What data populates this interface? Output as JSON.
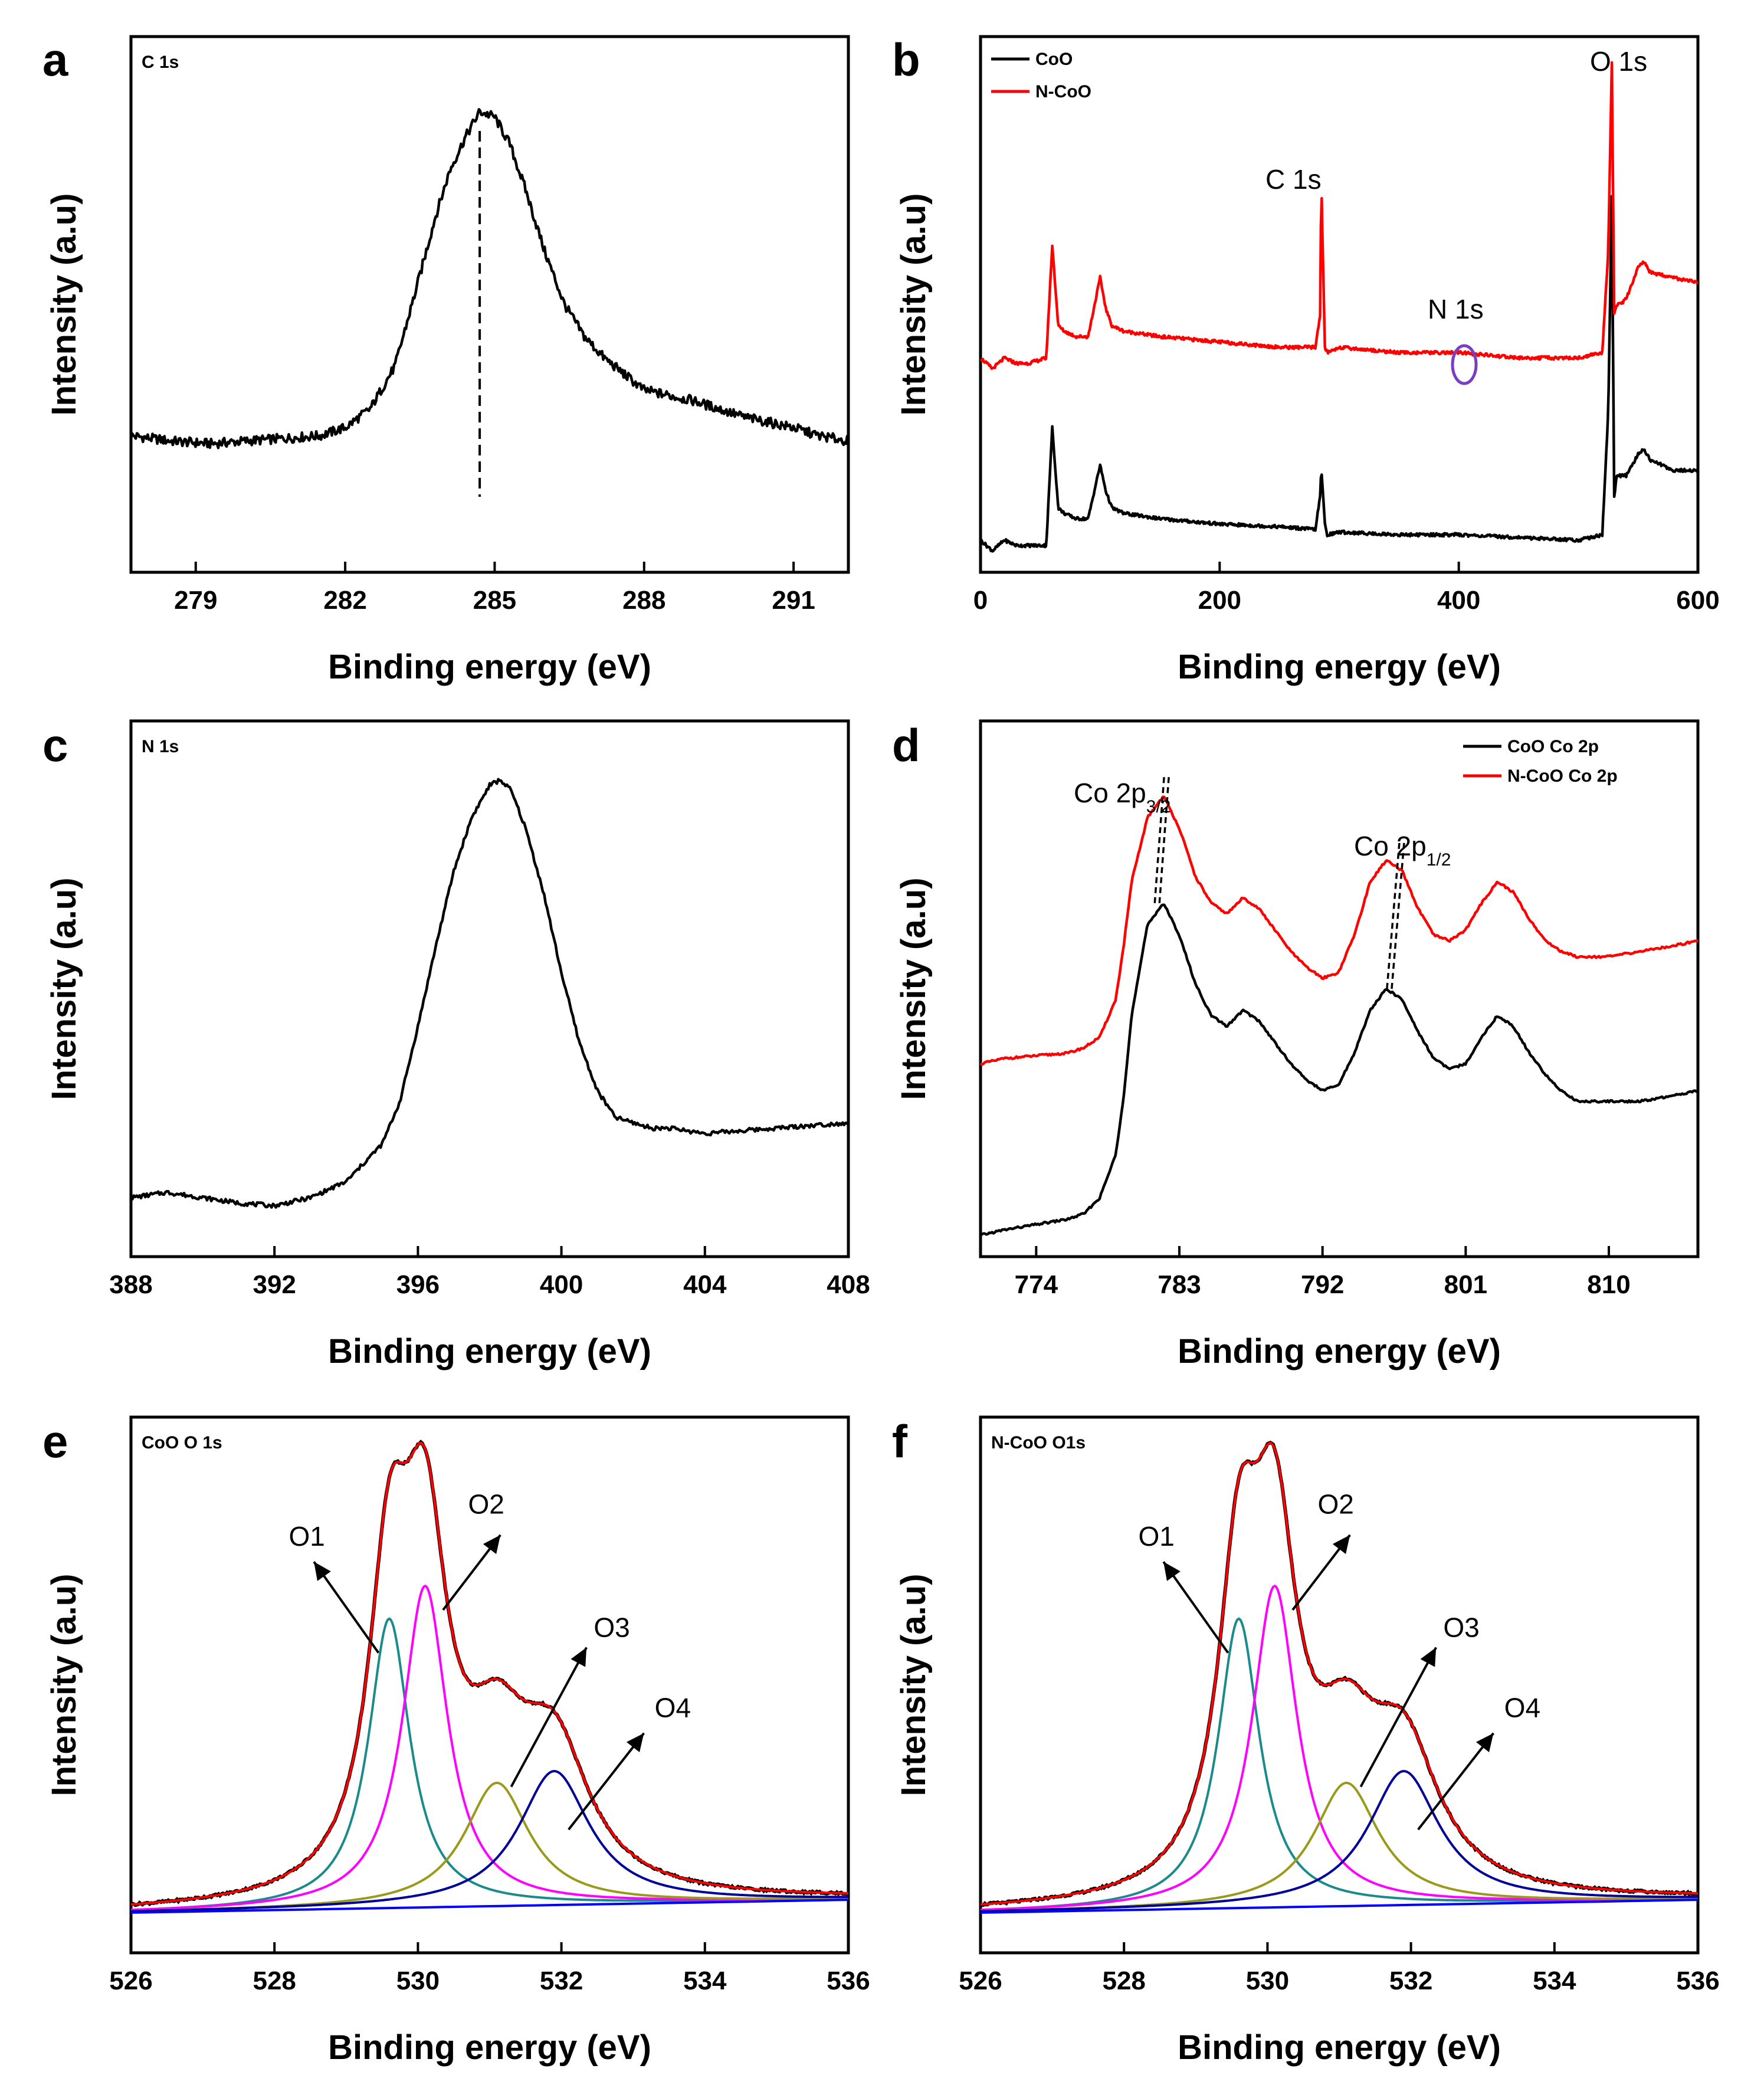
{
  "chart_data": [
    {
      "id": "a",
      "type": "line",
      "panel_label": "a",
      "title": "C 1s",
      "xlabel": "Binding energy (eV)",
      "ylabel": "Intensity (a.u)",
      "xlim": [
        277.7,
        292.1
      ],
      "ylim": [
        0,
        1.0
      ],
      "xticks": [
        279,
        282,
        285,
        288,
        291
      ],
      "series": [
        {
          "name": "C 1s",
          "color": "#000000",
          "x": [
            277.7,
            278.5,
            279.3,
            280.0,
            280.8,
            281.5,
            282.0,
            282.5,
            283.0,
            283.4,
            283.8,
            284.1,
            284.4,
            284.7,
            285.0,
            285.3,
            285.6,
            286.0,
            286.4,
            286.8,
            287.2,
            287.6,
            288.0,
            288.5,
            289.0,
            289.5,
            290.0,
            290.5,
            291.0,
            291.5,
            292.1
          ],
          "y": [
            0.255,
            0.245,
            0.24,
            0.245,
            0.25,
            0.255,
            0.27,
            0.305,
            0.385,
            0.52,
            0.66,
            0.75,
            0.81,
            0.86,
            0.85,
            0.8,
            0.72,
            0.6,
            0.5,
            0.44,
            0.4,
            0.37,
            0.34,
            0.33,
            0.32,
            0.305,
            0.29,
            0.28,
            0.27,
            0.255,
            0.245
          ]
        }
      ],
      "annotations": [
        {
          "type": "dashed_line",
          "x": 284.7
        }
      ]
    },
    {
      "id": "b",
      "type": "line",
      "panel_label": "b",
      "xlabel": "Binding energy (eV)",
      "ylabel": "Intensity (a.u)",
      "xlim": [
        0,
        600
      ],
      "ylim": [
        0,
        1.0
      ],
      "xticks": [
        0,
        200,
        400,
        600
      ],
      "legend": {
        "position": "top-left",
        "entries": [
          "CoO",
          "N-CoO"
        ]
      },
      "annotations_text": [
        "O 1s",
        "C 1s",
        "N 1s"
      ],
      "series": [
        {
          "name": "CoO",
          "color": "#000000",
          "x": [
            0,
            10,
            20,
            30,
            40,
            55,
            60,
            65,
            70,
            80,
            90,
            100,
            105,
            110,
            120,
            150,
            200,
            250,
            280,
            284,
            285,
            288,
            290,
            300,
            350,
            400,
            450,
            500,
            520,
            525,
            528,
            530,
            532,
            535,
            540,
            550,
            555,
            560,
            580,
            600
          ],
          "y": [
            0.06,
            0.04,
            0.06,
            0.05,
            0.05,
            0.05,
            0.27,
            0.12,
            0.11,
            0.1,
            0.1,
            0.2,
            0.15,
            0.12,
            0.11,
            0.1,
            0.09,
            0.085,
            0.08,
            0.14,
            0.195,
            0.09,
            0.07,
            0.075,
            0.07,
            0.07,
            0.065,
            0.06,
            0.07,
            0.3,
            0.7,
            0.14,
            0.18,
            0.18,
            0.18,
            0.22,
            0.23,
            0.21,
            0.19,
            0.19
          ]
        },
        {
          "name": "N-CoO",
          "color": "#ff0000",
          "x": [
            0,
            10,
            20,
            30,
            40,
            55,
            60,
            65,
            70,
            80,
            90,
            100,
            105,
            110,
            120,
            150,
            200,
            250,
            280,
            284,
            285,
            288,
            290,
            300,
            350,
            400,
            450,
            500,
            520,
            525,
            528,
            530,
            532,
            535,
            540,
            550,
            555,
            560,
            580,
            600
          ],
          "y": [
            0.4,
            0.38,
            0.4,
            0.39,
            0.39,
            0.4,
            0.61,
            0.46,
            0.45,
            0.44,
            0.44,
            0.55,
            0.49,
            0.46,
            0.45,
            0.44,
            0.43,
            0.42,
            0.42,
            0.48,
            0.73,
            0.42,
            0.41,
            0.42,
            0.41,
            0.41,
            0.4,
            0.4,
            0.41,
            0.6,
            0.95,
            0.48,
            0.5,
            0.5,
            0.51,
            0.57,
            0.58,
            0.56,
            0.55,
            0.54
          ]
        }
      ]
    },
    {
      "id": "c",
      "type": "line",
      "panel_label": "c",
      "title": "N 1s",
      "xlabel": "Binding energy (eV)",
      "ylabel": "Intensity (a.u)",
      "xlim": [
        388,
        408
      ],
      "ylim": [
        0,
        1.0
      ],
      "xticks": [
        388,
        392,
        396,
        400,
        404,
        408
      ],
      "series": [
        {
          "name": "N 1s",
          "color": "#000000",
          "x": [
            388,
            389,
            390,
            391,
            392,
            393,
            394,
            395,
            395.5,
            396,
            396.5,
            397,
            397.5,
            398,
            398.3,
            398.6,
            399,
            399.5,
            400,
            400.5,
            401,
            401.5,
            402,
            402.5,
            403,
            403.5,
            404,
            405,
            406,
            407,
            408
          ],
          "y": [
            0.11,
            0.12,
            0.11,
            0.1,
            0.095,
            0.11,
            0.14,
            0.21,
            0.29,
            0.43,
            0.58,
            0.72,
            0.82,
            0.88,
            0.89,
            0.87,
            0.8,
            0.68,
            0.53,
            0.4,
            0.31,
            0.26,
            0.25,
            0.24,
            0.24,
            0.235,
            0.23,
            0.235,
            0.24,
            0.245,
            0.25
          ]
        }
      ]
    },
    {
      "id": "d",
      "type": "line",
      "panel_label": "d",
      "xlabel": "Binding energy (eV)",
      "ylabel": "Intensity (a.u)",
      "xlim": [
        770.5,
        815.6
      ],
      "ylim": [
        0,
        1.0
      ],
      "xticks": [
        774,
        783,
        792,
        801,
        810
      ],
      "legend": {
        "position": "top-right",
        "entries": [
          "CoO Co 2p",
          "N-CoO Co 2p"
        ]
      },
      "annotations_text": [
        "Co 2p3/2",
        "Co 2p1/2"
      ],
      "series": [
        {
          "name": "CoO Co 2p",
          "color": "#000000",
          "x": [
            770.5,
            772,
            774,
            776,
            777,
            778,
            779,
            779.5,
            780,
            781,
            782,
            783,
            784,
            785,
            786,
            787,
            788,
            789,
            790,
            791,
            792,
            793,
            794,
            795,
            796,
            797,
            798,
            799,
            800,
            801,
            802,
            803,
            804,
            805,
            806,
            807,
            808,
            810,
            812,
            814,
            815.6
          ],
          "y": [
            0.04,
            0.05,
            0.06,
            0.07,
            0.08,
            0.11,
            0.19,
            0.3,
            0.45,
            0.62,
            0.66,
            0.6,
            0.51,
            0.45,
            0.43,
            0.46,
            0.44,
            0.4,
            0.36,
            0.33,
            0.31,
            0.32,
            0.38,
            0.46,
            0.5,
            0.48,
            0.42,
            0.37,
            0.35,
            0.36,
            0.41,
            0.45,
            0.43,
            0.38,
            0.34,
            0.31,
            0.29,
            0.29,
            0.29,
            0.3,
            0.31
          ]
        },
        {
          "name": "N-CoO Co 2p",
          "color": "#ff0000",
          "x": [
            770.5,
            772,
            774,
            776,
            777,
            778,
            779,
            779.5,
            780,
            781,
            782,
            783,
            784,
            785,
            786,
            787,
            788,
            789,
            790,
            791,
            792,
            793,
            794,
            795,
            796,
            797,
            798,
            799,
            800,
            801,
            802,
            803,
            804,
            805,
            806,
            807,
            808,
            810,
            812,
            814,
            815.6
          ],
          "y": [
            0.36,
            0.37,
            0.375,
            0.38,
            0.39,
            0.41,
            0.48,
            0.58,
            0.7,
            0.82,
            0.86,
            0.8,
            0.71,
            0.66,
            0.64,
            0.67,
            0.65,
            0.61,
            0.57,
            0.54,
            0.52,
            0.53,
            0.6,
            0.7,
            0.74,
            0.72,
            0.65,
            0.6,
            0.59,
            0.61,
            0.66,
            0.7,
            0.68,
            0.63,
            0.59,
            0.57,
            0.56,
            0.56,
            0.57,
            0.58,
            0.59
          ]
        }
      ]
    },
    {
      "id": "e",
      "type": "line",
      "panel_label": "e",
      "title": "CoO O 1s",
      "xlabel": "Binding energy (eV)",
      "ylabel": "Intensity (a.u)",
      "xlim": [
        526,
        536
      ],
      "ylim": [
        0,
        1.0
      ],
      "xticks": [
        526,
        528,
        530,
        532,
        534,
        536
      ],
      "annotations_text": [
        "O1",
        "O2",
        "O3",
        "O4"
      ],
      "baseline": 0.075,
      "components": [
        {
          "name": "O1",
          "color": "#1a8a8a",
          "center": 529.6,
          "height": 0.54,
          "width": 0.35
        },
        {
          "name": "O2",
          "color": "#ff00ff",
          "center": 530.1,
          "height": 0.6,
          "width": 0.38
        },
        {
          "name": "O3",
          "color": "#9a9a1a",
          "center": 531.1,
          "height": 0.23,
          "width": 0.55
        },
        {
          "name": "O4",
          "color": "#000099",
          "center": 531.9,
          "height": 0.25,
          "width": 0.6
        }
      ],
      "series": [
        {
          "name": "Envelope",
          "color": "#000000"
        },
        {
          "name": "Fit",
          "color": "#ff0000"
        },
        {
          "name": "Background",
          "color": "#0000ff"
        }
      ]
    },
    {
      "id": "f",
      "type": "line",
      "panel_label": "f",
      "title": "N-CoO O1s",
      "xlabel": "Binding energy (eV)",
      "ylabel": "Intensity (a.u)",
      "xlim": [
        526,
        536
      ],
      "ylim": [
        0,
        1.0
      ],
      "xticks": [
        526,
        528,
        530,
        532,
        534,
        536
      ],
      "annotations_text": [
        "O1",
        "O2",
        "O3",
        "O4"
      ],
      "baseline": 0.075,
      "components": [
        {
          "name": "O1",
          "color": "#1a8a8a",
          "center": 529.6,
          "height": 0.54,
          "width": 0.35
        },
        {
          "name": "O2",
          "color": "#ff00ff",
          "center": 530.1,
          "height": 0.6,
          "width": 0.38
        },
        {
          "name": "O3",
          "color": "#9a9a1a",
          "center": 531.1,
          "height": 0.23,
          "width": 0.55
        },
        {
          "name": "O4",
          "color": "#000099",
          "center": 531.9,
          "height": 0.25,
          "width": 0.6
        }
      ],
      "series": [
        {
          "name": "Envelope",
          "color": "#000000"
        },
        {
          "name": "Fit",
          "color": "#ff0000"
        },
        {
          "name": "Background",
          "color": "#0000ff"
        }
      ]
    }
  ]
}
